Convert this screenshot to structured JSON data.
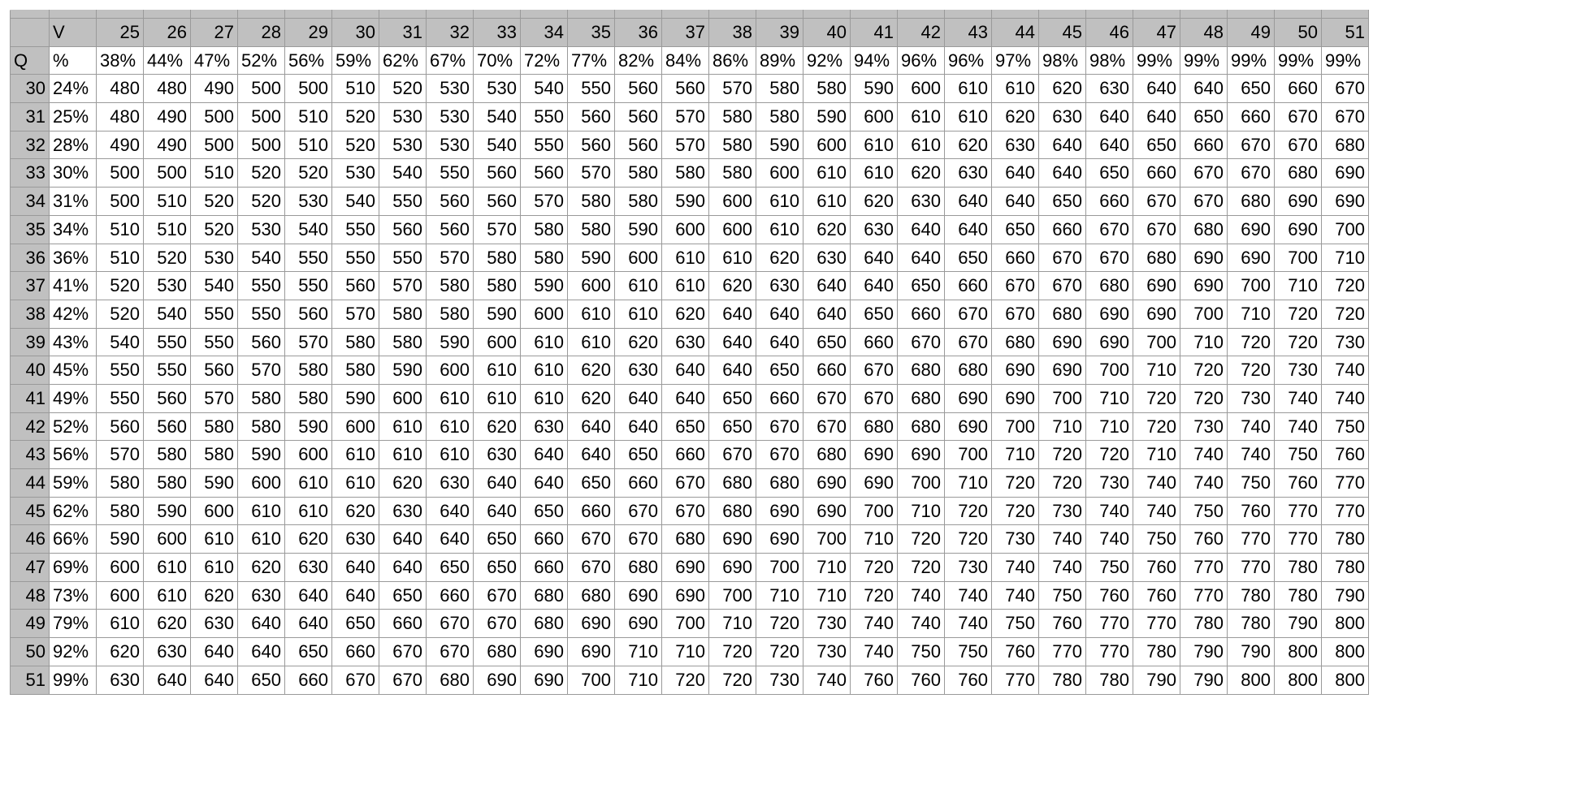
{
  "table": {
    "type": "table",
    "background_color": "#ffffff",
    "header_bg": "#c0c0c0",
    "grid_color": "#9a9a9a",
    "text_color": "#000000",
    "cell_fontsize": 22,
    "row_label_header": "Q",
    "col_label_header": "V",
    "percent_label": "%",
    "columns": {
      "v_values": [
        25,
        26,
        27,
        28,
        29,
        30,
        31,
        32,
        33,
        34,
        35,
        36,
        37,
        38,
        39,
        40,
        41,
        42,
        43,
        44,
        45,
        46,
        47,
        48,
        49,
        50,
        51
      ],
      "v_percents": [
        "38%",
        "44%",
        "47%",
        "52%",
        "56%",
        "59%",
        "62%",
        "67%",
        "70%",
        "72%",
        "77%",
        "82%",
        "84%",
        "86%",
        "89%",
        "92%",
        "94%",
        "96%",
        "96%",
        "97%",
        "98%",
        "98%",
        "99%",
        "99%",
        "99%",
        "99%",
        "99%"
      ]
    },
    "rows": [
      {
        "q": 30,
        "pct": "24%",
        "vals": [
          480,
          480,
          490,
          500,
          500,
          510,
          520,
          530,
          530,
          540,
          550,
          560,
          560,
          570,
          580,
          580,
          590,
          600,
          610,
          610,
          620,
          630,
          640,
          640,
          650,
          660,
          670
        ]
      },
      {
        "q": 31,
        "pct": "25%",
        "vals": [
          480,
          490,
          500,
          500,
          510,
          520,
          530,
          530,
          540,
          550,
          560,
          560,
          570,
          580,
          580,
          590,
          600,
          610,
          610,
          620,
          630,
          640,
          640,
          650,
          660,
          670,
          670
        ]
      },
      {
        "q": 32,
        "pct": "28%",
        "vals": [
          490,
          490,
          500,
          500,
          510,
          520,
          530,
          530,
          540,
          550,
          560,
          560,
          570,
          580,
          590,
          600,
          610,
          610,
          620,
          630,
          640,
          640,
          650,
          660,
          670,
          670,
          680
        ]
      },
      {
        "q": 33,
        "pct": "30%",
        "vals": [
          500,
          500,
          510,
          520,
          520,
          530,
          540,
          550,
          560,
          560,
          570,
          580,
          580,
          580,
          600,
          610,
          610,
          620,
          630,
          640,
          640,
          650,
          660,
          670,
          670,
          680,
          690
        ]
      },
      {
        "q": 34,
        "pct": "31%",
        "vals": [
          500,
          510,
          520,
          520,
          530,
          540,
          550,
          560,
          560,
          570,
          580,
          580,
          590,
          600,
          610,
          610,
          620,
          630,
          640,
          640,
          650,
          660,
          670,
          670,
          680,
          690,
          690
        ]
      },
      {
        "q": 35,
        "pct": "34%",
        "vals": [
          510,
          510,
          520,
          530,
          540,
          550,
          560,
          560,
          570,
          580,
          580,
          590,
          600,
          600,
          610,
          620,
          630,
          640,
          640,
          650,
          660,
          670,
          670,
          680,
          690,
          690,
          700
        ]
      },
      {
        "q": 36,
        "pct": "36%",
        "vals": [
          510,
          520,
          530,
          540,
          550,
          550,
          550,
          570,
          580,
          580,
          590,
          600,
          610,
          610,
          620,
          630,
          640,
          640,
          650,
          660,
          670,
          670,
          680,
          690,
          690,
          700,
          710
        ]
      },
      {
        "q": 37,
        "pct": "41%",
        "vals": [
          520,
          530,
          540,
          550,
          550,
          560,
          570,
          580,
          580,
          590,
          600,
          610,
          610,
          620,
          630,
          640,
          640,
          650,
          660,
          670,
          670,
          680,
          690,
          690,
          700,
          710,
          720
        ]
      },
      {
        "q": 38,
        "pct": "42%",
        "vals": [
          520,
          540,
          550,
          550,
          560,
          570,
          580,
          580,
          590,
          600,
          610,
          610,
          620,
          640,
          640,
          640,
          650,
          660,
          670,
          670,
          680,
          690,
          690,
          700,
          710,
          720,
          720
        ]
      },
      {
        "q": 39,
        "pct": "43%",
        "vals": [
          540,
          550,
          550,
          560,
          570,
          580,
          580,
          590,
          600,
          610,
          610,
          620,
          630,
          640,
          640,
          650,
          660,
          670,
          670,
          680,
          690,
          690,
          700,
          710,
          720,
          720,
          730
        ]
      },
      {
        "q": 40,
        "pct": "45%",
        "vals": [
          550,
          550,
          560,
          570,
          580,
          580,
          590,
          600,
          610,
          610,
          620,
          630,
          640,
          640,
          650,
          660,
          670,
          680,
          680,
          690,
          690,
          700,
          710,
          720,
          720,
          730,
          740
        ]
      },
      {
        "q": 41,
        "pct": "49%",
        "vals": [
          550,
          560,
          570,
          580,
          580,
          590,
          600,
          610,
          610,
          610,
          620,
          640,
          640,
          650,
          660,
          670,
          670,
          680,
          690,
          690,
          700,
          710,
          720,
          720,
          730,
          740,
          740
        ]
      },
      {
        "q": 42,
        "pct": "52%",
        "vals": [
          560,
          560,
          580,
          580,
          590,
          600,
          610,
          610,
          620,
          630,
          640,
          640,
          650,
          650,
          670,
          670,
          680,
          680,
          690,
          700,
          710,
          710,
          720,
          730,
          740,
          740,
          750
        ]
      },
      {
        "q": 43,
        "pct": "56%",
        "vals": [
          570,
          580,
          580,
          590,
          600,
          610,
          610,
          610,
          630,
          640,
          640,
          650,
          660,
          670,
          670,
          680,
          690,
          690,
          700,
          710,
          720,
          720,
          710,
          740,
          740,
          750,
          760
        ]
      },
      {
        "q": 44,
        "pct": "59%",
        "vals": [
          580,
          580,
          590,
          600,
          610,
          610,
          620,
          630,
          640,
          640,
          650,
          660,
          670,
          680,
          680,
          690,
          690,
          700,
          710,
          720,
          720,
          730,
          740,
          740,
          750,
          760,
          770
        ]
      },
      {
        "q": 45,
        "pct": "62%",
        "vals": [
          580,
          590,
          600,
          610,
          610,
          620,
          630,
          640,
          640,
          650,
          660,
          670,
          670,
          680,
          690,
          690,
          700,
          710,
          720,
          720,
          730,
          740,
          740,
          750,
          760,
          770,
          770
        ]
      },
      {
        "q": 46,
        "pct": "66%",
        "vals": [
          590,
          600,
          610,
          610,
          620,
          630,
          640,
          640,
          650,
          660,
          670,
          670,
          680,
          690,
          690,
          700,
          710,
          720,
          720,
          730,
          740,
          740,
          750,
          760,
          770,
          770,
          780
        ]
      },
      {
        "q": 47,
        "pct": "69%",
        "vals": [
          600,
          610,
          610,
          620,
          630,
          640,
          640,
          650,
          650,
          660,
          670,
          680,
          690,
          690,
          700,
          710,
          720,
          720,
          730,
          740,
          740,
          750,
          760,
          770,
          770,
          780,
          780
        ]
      },
      {
        "q": 48,
        "pct": "73%",
        "vals": [
          600,
          610,
          620,
          630,
          640,
          640,
          650,
          660,
          670,
          680,
          680,
          690,
          690,
          700,
          710,
          710,
          720,
          740,
          740,
          740,
          750,
          760,
          760,
          770,
          780,
          780,
          790
        ]
      },
      {
        "q": 49,
        "pct": "79%",
        "vals": [
          610,
          620,
          630,
          640,
          640,
          650,
          660,
          670,
          670,
          680,
          690,
          690,
          700,
          710,
          720,
          730,
          740,
          740,
          740,
          750,
          760,
          770,
          770,
          780,
          780,
          790,
          800
        ]
      },
      {
        "q": 50,
        "pct": "92%",
        "vals": [
          620,
          630,
          640,
          640,
          650,
          660,
          670,
          670,
          680,
          690,
          690,
          710,
          710,
          720,
          720,
          730,
          740,
          750,
          750,
          760,
          770,
          770,
          780,
          790,
          790,
          800,
          800
        ]
      },
      {
        "q": 51,
        "pct": "99%",
        "vals": [
          630,
          640,
          640,
          650,
          660,
          670,
          670,
          680,
          690,
          690,
          700,
          710,
          720,
          720,
          730,
          740,
          760,
          760,
          760,
          770,
          780,
          780,
          790,
          790,
          800,
          800,
          800
        ]
      }
    ]
  }
}
